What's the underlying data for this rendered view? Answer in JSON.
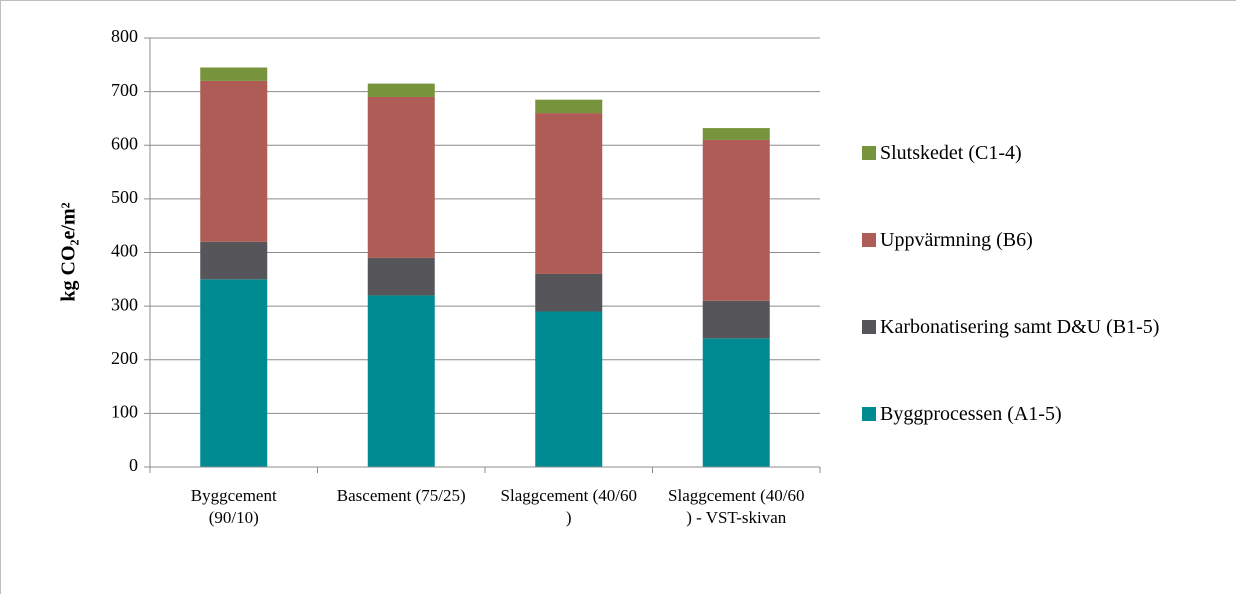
{
  "chart_data": {
    "type": "stacked_bar",
    "ylabel": "kg CO₂e/m²",
    "categories": [
      "Byggcement (90/10)",
      "Bascement (75/25)",
      "Slaggcement (40/60 )",
      "Slaggcement (40/60 ) - VST-skivan"
    ],
    "series": [
      {
        "name": "Byggprocessen (A1-5)",
        "color": "#008b93",
        "values": [
          350,
          320,
          290,
          240
        ]
      },
      {
        "name": "Karbonatisering samt D&U (B1-5)",
        "color": "#55555a",
        "values": [
          70,
          70,
          70,
          70
        ]
      },
      {
        "name": "Uppvärmning (B6)",
        "color": "#ae5c55",
        "values": [
          300,
          300,
          300,
          300
        ]
      },
      {
        "name": "Slutskedet (C1-4)",
        "color": "#77933c",
        "values": [
          25,
          25,
          25,
          22
        ]
      }
    ],
    "ylim": [
      0,
      800
    ],
    "yticks": [
      0,
      100,
      200,
      300,
      400,
      500,
      600,
      700,
      800
    ],
    "grid": true,
    "legend": "right"
  }
}
